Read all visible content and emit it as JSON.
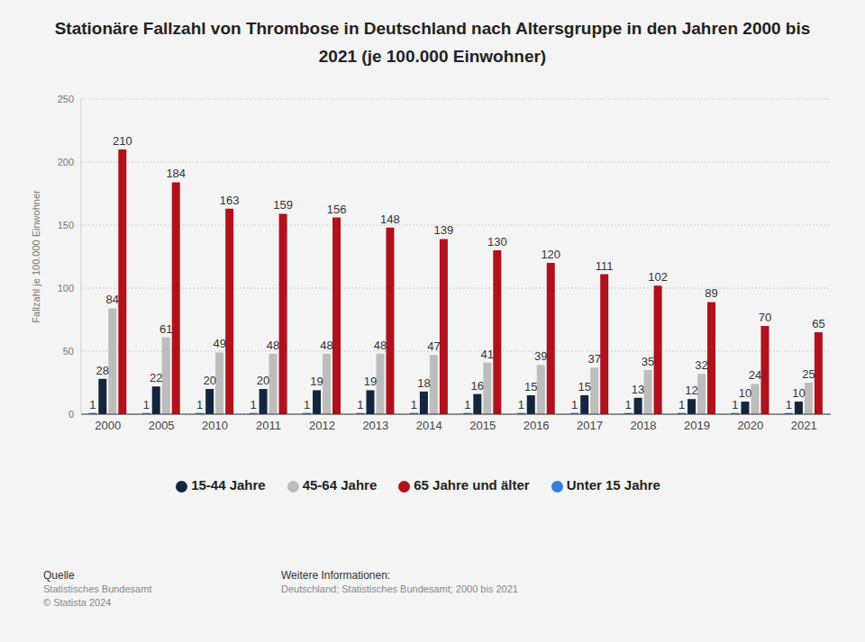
{
  "chart_data": {
    "type": "bar",
    "title": "Stationäre Fallzahl von Thrombose in Deutschland nach Altersgruppe in den Jahren 2000 bis 2021 (je 100.000 Einwohner)",
    "y_label": "Fallzahl je 100.000 Einwohner",
    "categories": [
      "2000",
      "2005",
      "2010",
      "2011",
      "2012",
      "2013",
      "2014",
      "2015",
      "2016",
      "2017",
      "2018",
      "2019",
      "2020",
      "2021"
    ],
    "series": [
      {
        "name": "Unter 15 Jahre",
        "color": "#2f7fdd",
        "values": [
          1,
          1,
          1,
          1,
          1,
          1,
          1,
          1,
          1,
          1,
          1,
          1,
          1,
          1
        ]
      },
      {
        "name": "15-44 Jahre",
        "color": "#14263f",
        "values": [
          28,
          22,
          20,
          20,
          19,
          19,
          18,
          16,
          15,
          15,
          13,
          12,
          10,
          10
        ]
      },
      {
        "name": "45-64 Jahre",
        "color": "#bdbdbd",
        "values": [
          84,
          61,
          49,
          48,
          48,
          48,
          47,
          41,
          39,
          37,
          35,
          32,
          24,
          25
        ]
      },
      {
        "name": "65 Jahre und älter",
        "color": "#b0111b",
        "values": [
          210,
          184,
          163,
          159,
          156,
          148,
          139,
          130,
          120,
          111,
          102,
          89,
          70,
          65
        ]
      }
    ],
    "ylim": [
      0,
      250
    ],
    "yticks": [
      0,
      50,
      100,
      150,
      200,
      250
    ],
    "grid": true,
    "data_labels": true,
    "legend": "bottom",
    "source": {
      "heading": "Quelle",
      "lines": [
        "Statistisches Bundesamt",
        "© Statista 2024"
      ]
    },
    "notes": {
      "heading": "Weitere Informationen:",
      "lines": [
        "Deutschland; Statistisches Bundesamt; 2000 bis 2021"
      ]
    }
  }
}
